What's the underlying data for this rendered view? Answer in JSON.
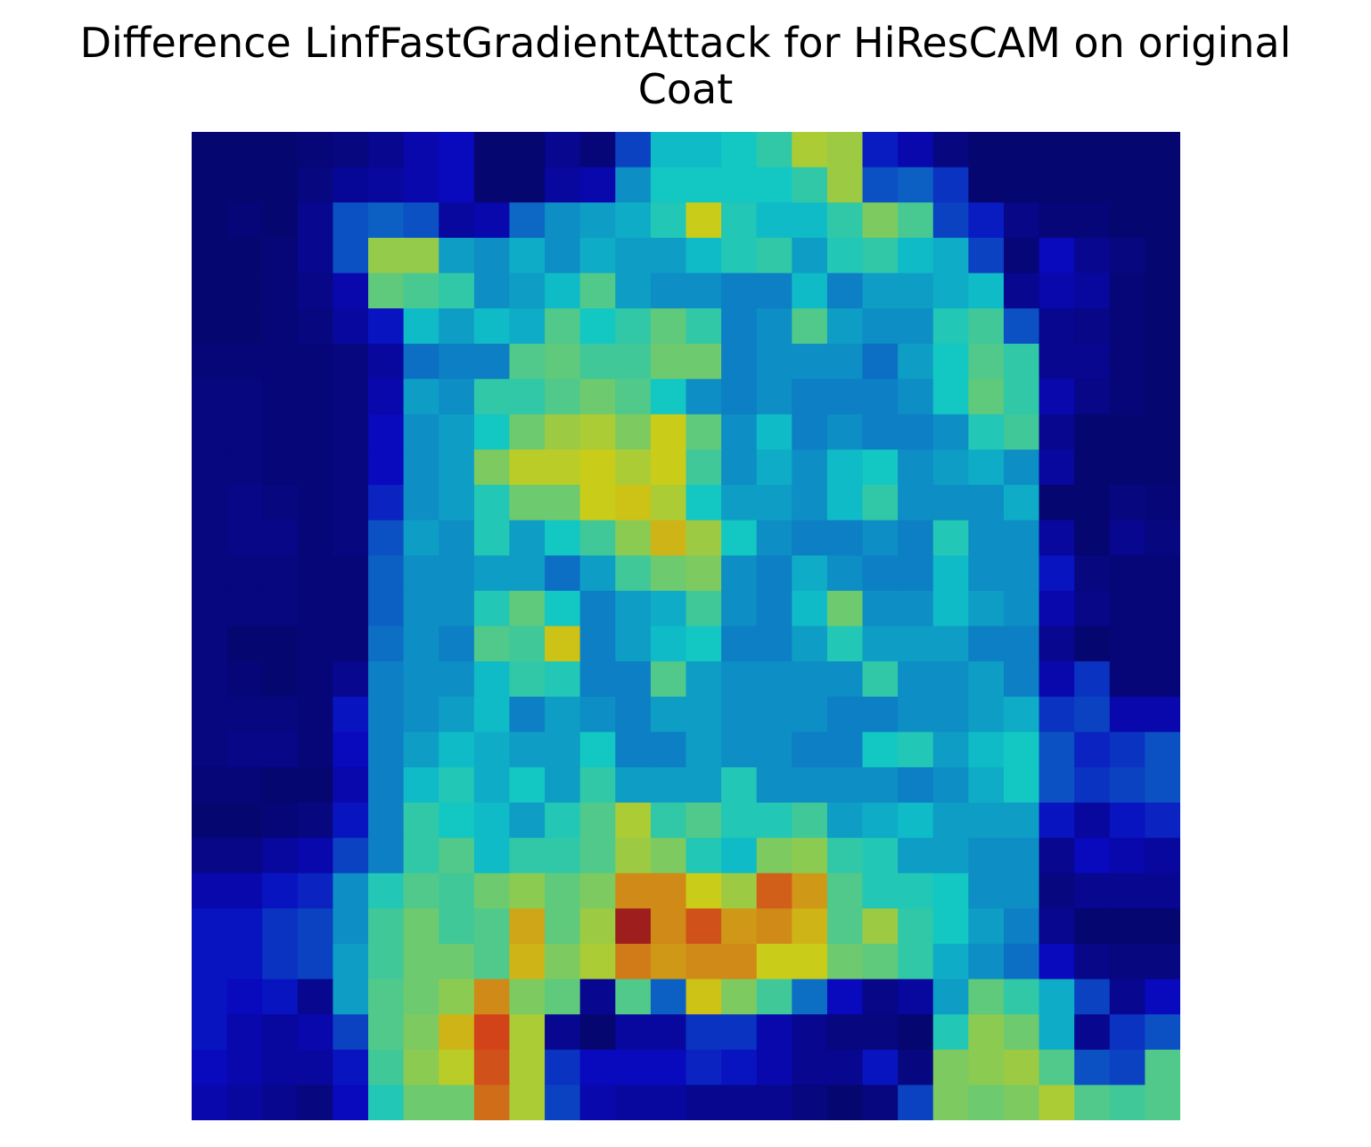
{
  "chart_data": {
    "type": "heatmap",
    "title": "Difference LinfFastGradientAttack for HiResCAM on original",
    "subtitle": "Coat",
    "xlabel": "",
    "ylabel": "",
    "axes_visible": false,
    "grid": false,
    "colormap": "jet",
    "rows": 28,
    "cols": 28,
    "value_range": [
      0,
      1
    ],
    "values": [
      [
        0.02,
        0.02,
        0.02,
        0.03,
        0.04,
        0.06,
        0.1,
        0.12,
        0.02,
        0.02,
        0.06,
        0.03,
        0.2,
        0.36,
        0.36,
        0.38,
        0.42,
        0.58,
        0.56,
        0.15,
        0.1,
        0.04,
        0.02,
        0.02,
        0.02,
        0.02,
        0.02,
        0.02
      ],
      [
        0.02,
        0.02,
        0.02,
        0.04,
        0.07,
        0.08,
        0.1,
        0.12,
        0.02,
        0.02,
        0.08,
        0.1,
        0.3,
        0.38,
        0.38,
        0.38,
        0.38,
        0.42,
        0.56,
        0.22,
        0.24,
        0.18,
        0.02,
        0.02,
        0.02,
        0.02,
        0.02,
        0.02
      ],
      [
        0.02,
        0.03,
        0.02,
        0.06,
        0.22,
        0.24,
        0.22,
        0.08,
        0.1,
        0.25,
        0.3,
        0.32,
        0.34,
        0.4,
        0.62,
        0.4,
        0.36,
        0.36,
        0.42,
        0.52,
        0.45,
        0.2,
        0.15,
        0.05,
        0.03,
        0.03,
        0.02,
        0.02
      ],
      [
        0.02,
        0.02,
        0.03,
        0.06,
        0.22,
        0.55,
        0.55,
        0.32,
        0.3,
        0.34,
        0.3,
        0.34,
        0.32,
        0.32,
        0.36,
        0.4,
        0.42,
        0.32,
        0.4,
        0.42,
        0.36,
        0.34,
        0.2,
        0.03,
        0.12,
        0.06,
        0.04,
        0.02
      ],
      [
        0.02,
        0.02,
        0.03,
        0.05,
        0.1,
        0.48,
        0.45,
        0.42,
        0.3,
        0.32,
        0.36,
        0.46,
        0.32,
        0.3,
        0.3,
        0.28,
        0.28,
        0.36,
        0.28,
        0.32,
        0.32,
        0.34,
        0.36,
        0.06,
        0.1,
        0.08,
        0.03,
        0.02
      ],
      [
        0.02,
        0.02,
        0.03,
        0.04,
        0.08,
        0.14,
        0.36,
        0.32,
        0.36,
        0.34,
        0.46,
        0.38,
        0.42,
        0.48,
        0.42,
        0.28,
        0.3,
        0.46,
        0.32,
        0.3,
        0.3,
        0.4,
        0.44,
        0.22,
        0.06,
        0.05,
        0.03,
        0.02
      ],
      [
        0.03,
        0.03,
        0.03,
        0.03,
        0.04,
        0.08,
        0.26,
        0.28,
        0.28,
        0.46,
        0.48,
        0.44,
        0.44,
        0.5,
        0.5,
        0.28,
        0.3,
        0.3,
        0.3,
        0.26,
        0.32,
        0.38,
        0.46,
        0.42,
        0.06,
        0.06,
        0.03,
        0.02
      ],
      [
        0.04,
        0.04,
        0.03,
        0.03,
        0.04,
        0.1,
        0.32,
        0.3,
        0.42,
        0.42,
        0.46,
        0.5,
        0.46,
        0.38,
        0.3,
        0.28,
        0.3,
        0.28,
        0.28,
        0.28,
        0.3,
        0.38,
        0.48,
        0.42,
        0.1,
        0.05,
        0.03,
        0.02
      ],
      [
        0.04,
        0.04,
        0.03,
        0.03,
        0.04,
        0.12,
        0.3,
        0.32,
        0.38,
        0.5,
        0.56,
        0.58,
        0.52,
        0.62,
        0.48,
        0.3,
        0.36,
        0.28,
        0.3,
        0.28,
        0.28,
        0.3,
        0.4,
        0.44,
        0.06,
        0.02,
        0.02,
        0.02
      ],
      [
        0.04,
        0.04,
        0.03,
        0.03,
        0.04,
        0.12,
        0.3,
        0.32,
        0.52,
        0.6,
        0.6,
        0.62,
        0.58,
        0.62,
        0.44,
        0.3,
        0.34,
        0.3,
        0.36,
        0.38,
        0.3,
        0.32,
        0.34,
        0.3,
        0.08,
        0.02,
        0.02,
        0.02
      ],
      [
        0.04,
        0.05,
        0.04,
        0.03,
        0.04,
        0.16,
        0.3,
        0.32,
        0.4,
        0.5,
        0.5,
        0.62,
        0.64,
        0.58,
        0.38,
        0.32,
        0.32,
        0.3,
        0.36,
        0.42,
        0.3,
        0.3,
        0.3,
        0.34,
        0.02,
        0.02,
        0.04,
        0.03
      ],
      [
        0.04,
        0.05,
        0.05,
        0.03,
        0.04,
        0.22,
        0.32,
        0.3,
        0.4,
        0.32,
        0.38,
        0.44,
        0.54,
        0.66,
        0.56,
        0.38,
        0.3,
        0.28,
        0.28,
        0.3,
        0.28,
        0.4,
        0.3,
        0.3,
        0.08,
        0.02,
        0.06,
        0.04
      ],
      [
        0.04,
        0.04,
        0.04,
        0.03,
        0.03,
        0.24,
        0.3,
        0.3,
        0.32,
        0.32,
        0.26,
        0.32,
        0.44,
        0.5,
        0.52,
        0.3,
        0.28,
        0.34,
        0.3,
        0.28,
        0.28,
        0.36,
        0.3,
        0.3,
        0.14,
        0.04,
        0.03,
        0.03
      ],
      [
        0.04,
        0.04,
        0.04,
        0.03,
        0.03,
        0.24,
        0.3,
        0.3,
        0.4,
        0.48,
        0.38,
        0.28,
        0.32,
        0.34,
        0.44,
        0.3,
        0.28,
        0.36,
        0.5,
        0.3,
        0.3,
        0.36,
        0.32,
        0.3,
        0.1,
        0.05,
        0.03,
        0.03
      ],
      [
        0.04,
        0.02,
        0.02,
        0.03,
        0.03,
        0.26,
        0.3,
        0.28,
        0.46,
        0.44,
        0.64,
        0.28,
        0.32,
        0.36,
        0.38,
        0.28,
        0.28,
        0.32,
        0.4,
        0.32,
        0.32,
        0.32,
        0.28,
        0.28,
        0.06,
        0.02,
        0.03,
        0.03
      ],
      [
        0.04,
        0.03,
        0.02,
        0.03,
        0.06,
        0.28,
        0.3,
        0.3,
        0.36,
        0.42,
        0.4,
        0.28,
        0.28,
        0.46,
        0.32,
        0.3,
        0.3,
        0.3,
        0.3,
        0.42,
        0.3,
        0.3,
        0.32,
        0.28,
        0.1,
        0.18,
        0.03,
        0.03
      ],
      [
        0.04,
        0.04,
        0.04,
        0.03,
        0.14,
        0.28,
        0.3,
        0.32,
        0.36,
        0.28,
        0.32,
        0.3,
        0.28,
        0.32,
        0.32,
        0.3,
        0.3,
        0.3,
        0.28,
        0.28,
        0.3,
        0.3,
        0.32,
        0.34,
        0.18,
        0.2,
        0.1,
        0.1
      ],
      [
        0.04,
        0.05,
        0.05,
        0.03,
        0.12,
        0.28,
        0.32,
        0.36,
        0.34,
        0.32,
        0.32,
        0.38,
        0.28,
        0.28,
        0.32,
        0.3,
        0.3,
        0.28,
        0.28,
        0.38,
        0.4,
        0.32,
        0.36,
        0.38,
        0.22,
        0.16,
        0.18,
        0.22
      ],
      [
        0.03,
        0.03,
        0.02,
        0.02,
        0.1,
        0.28,
        0.36,
        0.4,
        0.34,
        0.38,
        0.32,
        0.42,
        0.32,
        0.32,
        0.32,
        0.4,
        0.3,
        0.3,
        0.3,
        0.3,
        0.28,
        0.3,
        0.34,
        0.38,
        0.22,
        0.18,
        0.2,
        0.22
      ],
      [
        0.02,
        0.02,
        0.03,
        0.04,
        0.14,
        0.28,
        0.42,
        0.38,
        0.36,
        0.32,
        0.4,
        0.46,
        0.58,
        0.42,
        0.46,
        0.4,
        0.4,
        0.44,
        0.32,
        0.34,
        0.36,
        0.32,
        0.32,
        0.32,
        0.14,
        0.08,
        0.14,
        0.16
      ],
      [
        0.05,
        0.05,
        0.08,
        0.1,
        0.2,
        0.28,
        0.42,
        0.46,
        0.36,
        0.42,
        0.42,
        0.46,
        0.56,
        0.52,
        0.4,
        0.36,
        0.52,
        0.54,
        0.42,
        0.4,
        0.32,
        0.32,
        0.3,
        0.3,
        0.06,
        0.12,
        0.1,
        0.08
      ],
      [
        0.1,
        0.1,
        0.14,
        0.16,
        0.3,
        0.4,
        0.46,
        0.44,
        0.5,
        0.54,
        0.48,
        0.52,
        0.72,
        0.72,
        0.62,
        0.56,
        0.78,
        0.7,
        0.46,
        0.4,
        0.4,
        0.38,
        0.3,
        0.3,
        0.04,
        0.06,
        0.06,
        0.06
      ],
      [
        0.14,
        0.14,
        0.18,
        0.2,
        0.3,
        0.44,
        0.5,
        0.44,
        0.46,
        0.68,
        0.48,
        0.56,
        0.95,
        0.72,
        0.8,
        0.7,
        0.72,
        0.66,
        0.46,
        0.56,
        0.42,
        0.38,
        0.32,
        0.28,
        0.06,
        0.02,
        0.02,
        0.02
      ],
      [
        0.14,
        0.14,
        0.18,
        0.2,
        0.32,
        0.44,
        0.5,
        0.5,
        0.46,
        0.66,
        0.52,
        0.58,
        0.74,
        0.7,
        0.72,
        0.72,
        0.62,
        0.62,
        0.5,
        0.48,
        0.42,
        0.34,
        0.3,
        0.26,
        0.12,
        0.05,
        0.04,
        0.04
      ],
      [
        0.14,
        0.12,
        0.14,
        0.06,
        0.32,
        0.46,
        0.5,
        0.54,
        0.72,
        0.52,
        0.48,
        0.06,
        0.46,
        0.24,
        0.64,
        0.52,
        0.44,
        0.26,
        0.12,
        0.05,
        0.08,
        0.32,
        0.48,
        0.42,
        0.34,
        0.2,
        0.06,
        0.12
      ],
      [
        0.14,
        0.1,
        0.08,
        0.1,
        0.2,
        0.46,
        0.52,
        0.66,
        0.82,
        0.58,
        0.06,
        0.02,
        0.08,
        0.08,
        0.18,
        0.18,
        0.1,
        0.06,
        0.04,
        0.04,
        0.02,
        0.4,
        0.54,
        0.5,
        0.34,
        0.06,
        0.18,
        0.22
      ],
      [
        0.12,
        0.1,
        0.08,
        0.08,
        0.14,
        0.44,
        0.54,
        0.6,
        0.8,
        0.58,
        0.18,
        0.12,
        0.12,
        0.12,
        0.16,
        0.14,
        0.1,
        0.06,
        0.06,
        0.14,
        0.04,
        0.52,
        0.54,
        0.56,
        0.46,
        0.22,
        0.2,
        0.46
      ],
      [
        0.1,
        0.08,
        0.06,
        0.04,
        0.12,
        0.4,
        0.5,
        0.5,
        0.76,
        0.58,
        0.2,
        0.1,
        0.08,
        0.08,
        0.06,
        0.06,
        0.06,
        0.04,
        0.02,
        0.04,
        0.2,
        0.52,
        0.5,
        0.52,
        0.58,
        0.46,
        0.44,
        0.46
      ]
    ]
  }
}
